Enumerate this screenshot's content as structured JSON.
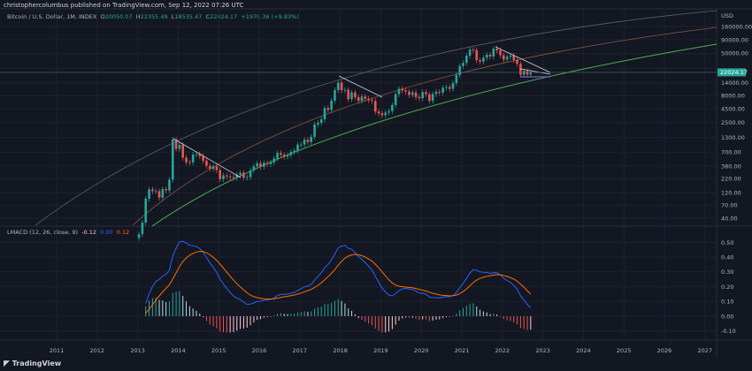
{
  "header": {
    "published": "christophercolumbus published on TradingView.com, Sep 12, 2022 07:26 UTC"
  },
  "legend": {
    "symbol": "Bitcoin / U.S. Dollar, 1M, INDEX",
    "o_label": "O",
    "o": "20050.07",
    "h_label": "H",
    "h": "22355.49",
    "l_label": "L",
    "l": "18535.47",
    "c_label": "C",
    "c": "22024.17",
    "change": "+1970.36 (+9.83%)"
  },
  "macd_legend": {
    "name": "LMACD (12, 26, close, 9)",
    "hist": "-0.12",
    "macd": "0.00",
    "signal": "0.12"
  },
  "colors": {
    "background": "#131722",
    "up": "#26a69a",
    "down": "#ef5350",
    "macd": "#2962ff",
    "signal": "#ff6d00",
    "price_label": "#26a69a"
  },
  "logo": "TradingView",
  "chart_data": [
    {
      "type": "candlestick",
      "scale": "log",
      "currency": "USD",
      "current_price_label": "22024.17",
      "y_ticks": [
        "160000.00",
        "90000.00",
        "50000.00",
        "26000.00",
        "14000.00",
        "8000.00",
        "4500.00",
        "2500.00",
        "1300.00",
        "700.00",
        "380.00",
        "220.00",
        "120.00",
        "70.00",
        "40.00"
      ],
      "x_ticks": [
        "2011",
        "2012",
        "2013",
        "2014",
        "2015",
        "2016",
        "2017",
        "2018",
        "2019",
        "2020",
        "2021",
        "2022",
        "2023",
        "2024",
        "2025",
        "2026",
        "2027"
      ],
      "start": "2013-01",
      "monthly_close": [
        20,
        33,
        93,
        139,
        129,
        129,
        97,
        141,
        133,
        211,
        1205,
        805,
        950,
        550,
        450,
        447,
        628,
        640,
        586,
        480,
        386,
        338,
        378,
        320,
        217,
        254,
        244,
        236,
        230,
        263,
        285,
        231,
        237,
        314,
        378,
        430,
        369,
        437,
        416,
        448,
        531,
        673,
        624,
        575,
        609,
        701,
        745,
        964,
        970,
        1190,
        1080,
        1350,
        2300,
        2480,
        2880,
        4700,
        4340,
        6470,
        10200,
        14100,
        10200,
        10300,
        6900,
        9240,
        7500,
        6400,
        7730,
        7030,
        6630,
        6370,
        4040,
        3740,
        3460,
        3850,
        4100,
        5350,
        8570,
        10800,
        10100,
        9600,
        8300,
        9200,
        7560,
        7200,
        9350,
        8550,
        6430,
        8630,
        9450,
        9140,
        11350,
        11650,
        10780,
        13800,
        19700,
        28990,
        33100,
        45200,
        58800,
        57700,
        37300,
        35000,
        41500,
        47100,
        43800,
        61300,
        57000,
        46300,
        38500,
        43200,
        45500,
        37700,
        31800,
        19900,
        23300,
        20050,
        22024
      ],
      "grid": true
    },
    {
      "type": "line+bar",
      "name": "LMACD (12, 26, close, 9)",
      "y_ticks": [
        "0.50",
        "0.40",
        "0.30",
        "0.20",
        "0.10",
        "0.00",
        "-0.10"
      ],
      "ylim": [
        -0.13,
        0.6
      ]
    }
  ]
}
